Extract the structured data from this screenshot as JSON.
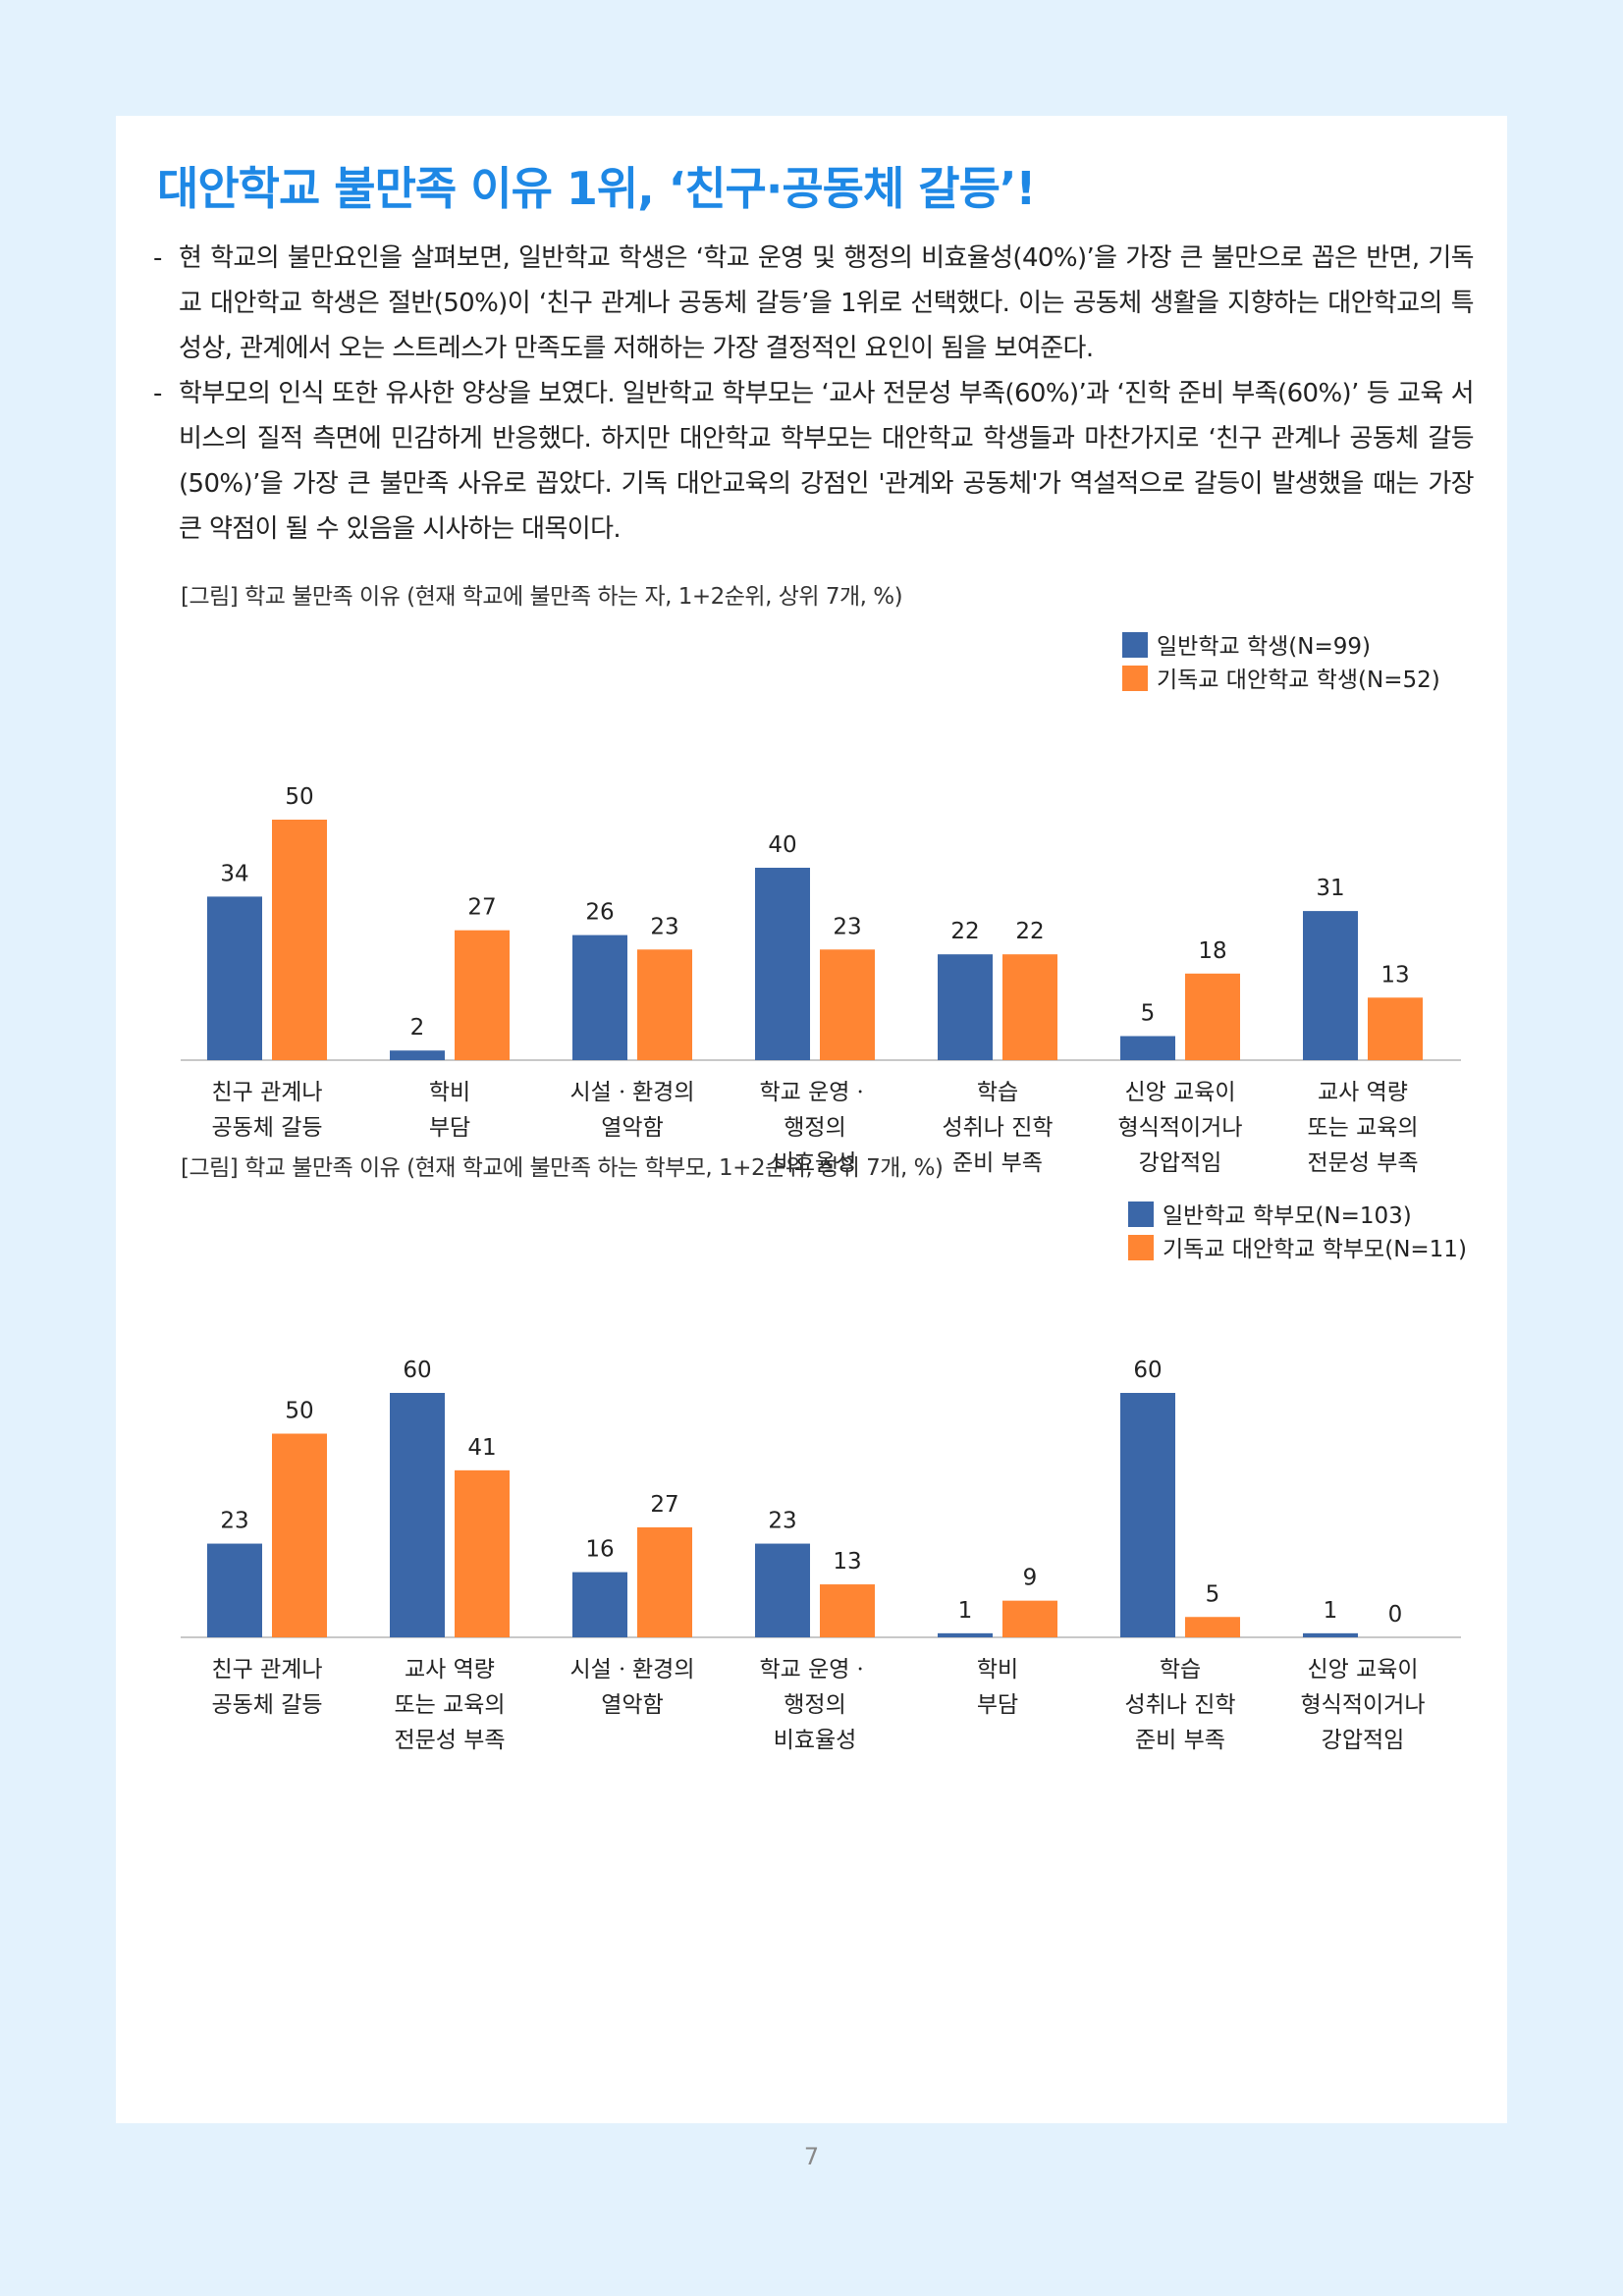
{
  "title": "대안학교 불만족 이유 1위, ‘친구·공동체 갈등’!",
  "paragraphs": [
    {
      "dash": "-",
      "text": "현 학교의 불만요인을 살펴보면, 일반학교 학생은 ‘학교 운영 및 행정의 비효율성(40%)’을 가장 큰 불만으로 꼽은 반면, 기독교 대안학교 학생은 절반(50%)이 ‘친구 관계나 공동체 갈등’을 1위로 선택했다. 이는 공동체 생활을 지향하는 대안학교의 특성상, 관계에서 오는 스트레스가 만족도를 저해하는 가장 결정적인 요인이 됨을 보여준다."
    },
    {
      "dash": "-",
      "text": "학부모의 인식 또한 유사한 양상을 보였다. 일반학교 학부모는 ‘교사 전문성 부족(60%)’과 ‘진학 준비 부족(60%)’ 등 교육 서비스의 질적 측면에 민감하게 반응했다. 하지만 대안학교 학부모는 대안학교 학생들과 마찬가지로 ‘친구 관계나 공동체 갈등(50%)’을 가장 큰 불만족 사유로 꼽았다. 기독 대안교육의 강점인 '관계와 공동체'가 역설적으로 갈등이 발생했을 때는 가장 큰 약점이 될 수 있음을 시사하는 대목이다."
    }
  ],
  "captions": [
    "[그림] 학교 불만족 이유 (현재 학교에 불만족 하는 자, 1+2순위, 상위 7개, %)",
    "[그림] 학교 불만족 이유 (현재 학교에 불만족 하는 학부모, 1+2순위, 상위 7개, %)"
  ],
  "colors": {
    "series1": "#3b67a8",
    "series2": "#ff8533",
    "title": "#1e88e5"
  },
  "chart_data": [
    {
      "type": "bar",
      "categories": [
        [
          "친구 관계나",
          "공동체 갈등"
        ],
        [
          "학비",
          "부담"
        ],
        [
          "시설ㆍ환경의",
          "열악함"
        ],
        [
          "학교 운영ㆍ",
          "행정의",
          "비효율성"
        ],
        [
          "학습",
          "성취나 진학",
          "준비 부족"
        ],
        [
          "신앙 교육이",
          "형식적이거나",
          "강압적임"
        ],
        [
          "교사 역량",
          "또는 교육의",
          "전문성 부족"
        ]
      ],
      "series": [
        {
          "name": "일반학교 학생(N=99)",
          "values": [
            34,
            2,
            26,
            40,
            22,
            5,
            31
          ]
        },
        {
          "name": "기독교 대안학교 학생(N=52)",
          "values": [
            50,
            27,
            23,
            23,
            22,
            18,
            13
          ]
        }
      ],
      "ylim": [
        0,
        52
      ],
      "legend": "top-right",
      "grid": false
    },
    {
      "type": "bar",
      "categories": [
        [
          "친구 관계나",
          "공동체 갈등"
        ],
        [
          "교사 역량",
          "또는 교육의",
          "전문성 부족"
        ],
        [
          "시설ㆍ환경의",
          "열악함"
        ],
        [
          "학교 운영ㆍ",
          "행정의",
          "비효율성"
        ],
        [
          "학비",
          "부담"
        ],
        [
          "학습",
          "성취나 진학",
          "준비 부족"
        ],
        [
          "신앙 교육이",
          "형식적이거나",
          "강압적임"
        ]
      ],
      "series": [
        {
          "name": "일반학교 학부모(N=103)",
          "values": [
            23,
            60,
            16,
            23,
            1,
            60,
            1
          ]
        },
        {
          "name": "기독교 대안학교 학부모(N=11)",
          "values": [
            50,
            41,
            27,
            13,
            9,
            5,
            0
          ]
        }
      ],
      "ylim": [
        0,
        60
      ],
      "legend": "top-right",
      "grid": false
    }
  ],
  "page_number": "7"
}
